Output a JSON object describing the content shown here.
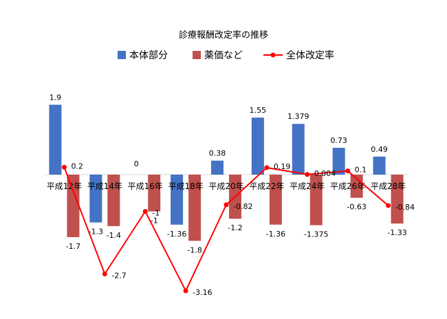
{
  "chart_data": {
    "type": "bar",
    "title": "診療報酬改定率の推移",
    "categories": [
      "平成12年",
      "平成14年",
      "平成16年",
      "平成18年",
      "平成20年",
      "平成22年",
      "平成24年",
      "平成26年",
      "平成28年"
    ],
    "series": [
      {
        "name": "本体部分",
        "type": "bar",
        "color": "#4472C4",
        "values": [
          1.9,
          -1.3,
          0,
          -1.36,
          0.38,
          1.55,
          1.379,
          0.73,
          0.49
        ],
        "labels": [
          "1.9",
          "-1.3",
          "0",
          "-1.36",
          "0.38",
          "1.55",
          "1.379",
          "0.73",
          "0.49"
        ]
      },
      {
        "name": "薬価など",
        "type": "bar",
        "color": "#C0504D",
        "values": [
          -1.7,
          -1.4,
          -1,
          -1.8,
          -1.2,
          -1.36,
          -1.375,
          -0.63,
          -1.33
        ],
        "labels": [
          "-1.7",
          "-1.4",
          "-1",
          "-1.8",
          "-1.2",
          "-1.36",
          "-1.375",
          "-0.63",
          "-1.33"
        ]
      },
      {
        "name": "全体改定率",
        "type": "line",
        "color": "#FF0000",
        "values": [
          0.2,
          -2.7,
          -1,
          -3.16,
          -0.82,
          0.19,
          0.004,
          0.1,
          -0.84
        ],
        "labels": [
          "0.2",
          "-2.7",
          "-1",
          "-3.16",
          "-0.82",
          "0.19",
          "0.004",
          "0.1",
          "-0.84"
        ]
      }
    ],
    "ylim": [
      -3.6,
      2.2
    ],
    "grid": false,
    "legend_position": "top"
  }
}
